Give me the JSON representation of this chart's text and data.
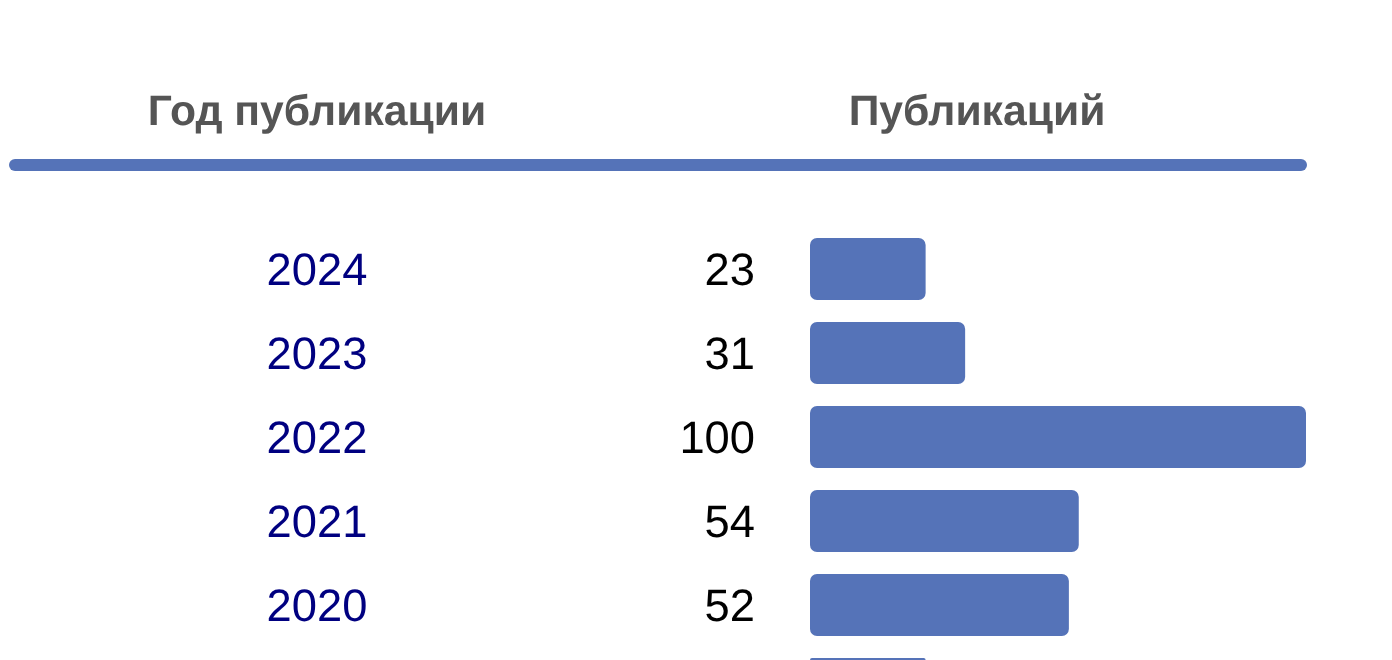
{
  "chart_data": {
    "type": "bar",
    "orientation": "horizontal",
    "ylabel": "Год публикации",
    "xlabel": "Публикаций",
    "categories": [
      "2024",
      "2023",
      "2022",
      "2021",
      "2020",
      null
    ],
    "values": [
      23,
      31,
      100,
      54,
      52,
      23
    ],
    "value_labels": [
      "23",
      "31",
      "100",
      "54",
      "52",
      null
    ],
    "color": "#5573b8",
    "grid": false
  }
}
